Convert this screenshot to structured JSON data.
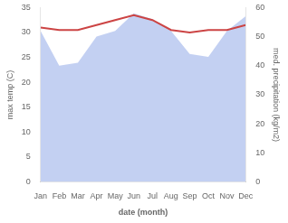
{
  "chart_data": {
    "type": "line",
    "xlabel": "date (month)",
    "ylabel": "max temp (C)",
    "y2label": "med. precipitation (kg/m2)",
    "categories": [
      "Jan",
      "Feb",
      "Mar",
      "Apr",
      "May",
      "Jun",
      "Jul",
      "Aug",
      "Sep",
      "Oct",
      "Nov",
      "Dec"
    ],
    "series": [
      {
        "type": "area",
        "axis": "y2",
        "color": "#b8c8f0",
        "values": [
          52,
          40,
          41,
          50,
          52,
          58,
          56,
          52,
          44,
          43,
          52,
          57
        ]
      },
      {
        "type": "line",
        "color": "#cc4444",
        "values": [
          31.0,
          30.5,
          30.5,
          31.5,
          32.5,
          33.5,
          32.5,
          30.5,
          30.0,
          30.5,
          30.5,
          31.5
        ]
      }
    ],
    "ylim": [
      0,
      35
    ],
    "yticks": [
      0,
      5,
      10,
      15,
      20,
      25,
      30,
      35
    ],
    "y2lim": [
      0,
      60
    ],
    "y2ticks": [
      0,
      10,
      20,
      30,
      40,
      50,
      60
    ],
    "grid": false
  }
}
